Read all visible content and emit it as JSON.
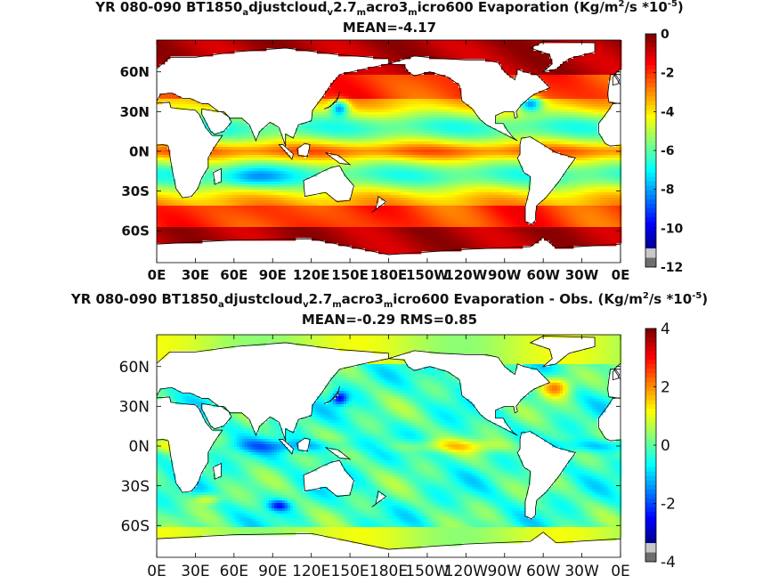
{
  "chart_data": [
    {
      "type": "heatmap",
      "title_parts": [
        "YR 080-090 BT1850",
        "a",
        "djustcloud",
        "v",
        "2.7",
        "m",
        "acro3",
        "m",
        "icro600  Evaporation (Kg/m",
        "2",
        "/s *10",
        "-5",
        ")"
      ],
      "subtitle": "MEAN=-4.17",
      "yticks": [
        "60N",
        "30N",
        "0N",
        "30S",
        "60S"
      ],
      "xticks": [
        "0E",
        "30E",
        "60E",
        "90E",
        "120E",
        "150E",
        "180E",
        "150W",
        "120W",
        "90W",
        "60W",
        "30W",
        "0E"
      ],
      "colorbar_ticks": [
        "0",
        "-2",
        "-4",
        "-6",
        "-8",
        "-10",
        "-12"
      ],
      "colorbar_range": [
        -12,
        0
      ],
      "mean": -4.17,
      "colormap": "jet"
    },
    {
      "type": "heatmap",
      "title_parts": [
        "YR 080-090 BT1850",
        "a",
        "djustcloud",
        "v",
        "2.7",
        "m",
        "acro3",
        "m",
        "icro600 Evaporation - Obs. (Kg/m",
        "2",
        "/s *10",
        "-5",
        ")"
      ],
      "subtitle": "MEAN=-0.29   RMS=0.85",
      "yticks": [
        "60N",
        "30N",
        "0N",
        "30S",
        "60S"
      ],
      "xticks": [
        "0E",
        "30E",
        "60E",
        "90E",
        "120E",
        "150E",
        "180E",
        "150W",
        "120W",
        "90W",
        "60W",
        "30W",
        "0E"
      ],
      "colorbar_ticks": [
        "4",
        "2",
        "0",
        "-2",
        "-4"
      ],
      "colorbar_range": [
        -4,
        4
      ],
      "mean": -0.29,
      "rms": 0.85,
      "colormap": "jet"
    }
  ]
}
